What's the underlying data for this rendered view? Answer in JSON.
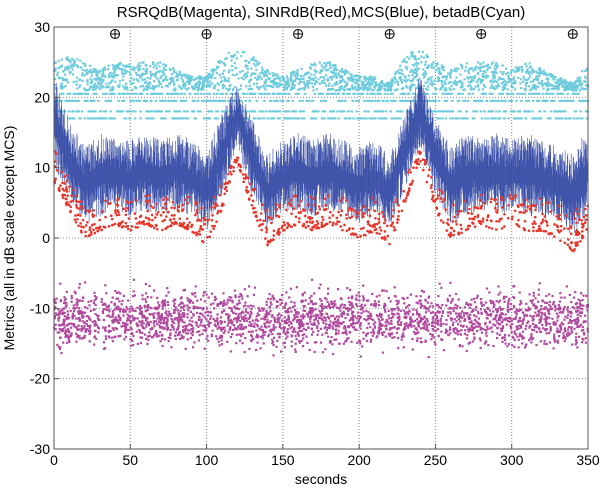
{
  "chart_data": {
    "type": "scatter",
    "title": "RSRQdB(Magenta), SINRdB(Red),MCS(Blue), betadB(Cyan)",
    "xlabel": "seconds",
    "ylabel": "Metrics (all in dB scale except MCS)",
    "xlim": [
      0,
      350
    ],
    "ylim": [
      -30,
      30
    ],
    "xticks": [
      "0",
      "50",
      "100",
      "150",
      "200",
      "250",
      "300",
      "350"
    ],
    "yticks": [
      "-30",
      "-20",
      "-10",
      "0",
      "10",
      "20",
      "30"
    ],
    "grid": true,
    "markers_at_top": {
      "x": [
        40,
        100,
        160,
        220,
        280,
        340
      ],
      "y": 29
    },
    "envelope_x": [
      0,
      10,
      20,
      30,
      40,
      50,
      60,
      70,
      80,
      90,
      100,
      110,
      120,
      130,
      140,
      150,
      160,
      170,
      180,
      190,
      200,
      210,
      220,
      230,
      240,
      250,
      260,
      270,
      280,
      290,
      300,
      310,
      320,
      330,
      340,
      350
    ],
    "series": [
      {
        "label": "betadB(Cyan)",
        "color": "#6ccbdc",
        "high": [
          27,
          26,
          25,
          24,
          25,
          25,
          25,
          25,
          24,
          23,
          23,
          26,
          27,
          26,
          24,
          23,
          24,
          25,
          25,
          24,
          23,
          23,
          22,
          26,
          27,
          25,
          24,
          25,
          25,
          25,
          24,
          25,
          24,
          23,
          22,
          25
        ],
        "low": 21,
        "bands": [
          20.5,
          19.5,
          18,
          17
        ]
      },
      {
        "label": "MCS(Blue)",
        "color": "#3a4fa8",
        "high": [
          23,
          17,
          13,
          15,
          14,
          14,
          15,
          14,
          15,
          14,
          12,
          18,
          22,
          17,
          12,
          14,
          15,
          14,
          15,
          14,
          13,
          14,
          12,
          18,
          23,
          17,
          13,
          15,
          14,
          15,
          14,
          15,
          14,
          13,
          12,
          16
        ],
        "low": [
          10,
          6,
          2,
          3,
          4,
          3,
          4,
          3,
          4,
          3,
          1,
          6,
          13,
          6,
          1,
          3,
          4,
          3,
          4,
          3,
          2,
          3,
          1,
          7,
          13,
          6,
          2,
          3,
          4,
          3,
          4,
          3,
          3,
          2,
          0,
          3
        ]
      },
      {
        "label": "SINRdB(Red)",
        "color": "#e8352a",
        "high": [
          16,
          11,
          8,
          9,
          9,
          9,
          9,
          9,
          9,
          9,
          7,
          11,
          12,
          11,
          7,
          9,
          9,
          9,
          9,
          9,
          8,
          9,
          7,
          11,
          14,
          11,
          8,
          9,
          9,
          9,
          9,
          9,
          9,
          8,
          7,
          10
        ],
        "low": [
          8,
          4,
          0,
          1,
          2,
          1,
          2,
          1,
          2,
          1,
          -1,
          4,
          11,
          4,
          -1,
          1,
          2,
          1,
          2,
          1,
          0,
          1,
          -1,
          5,
          11,
          4,
          0,
          1,
          2,
          1,
          2,
          1,
          1,
          0,
          -2,
          1
        ]
      },
      {
        "label": "RSRQdB(Magenta)",
        "color": "#b0489e",
        "high": -6,
        "low": -17
      }
    ]
  }
}
